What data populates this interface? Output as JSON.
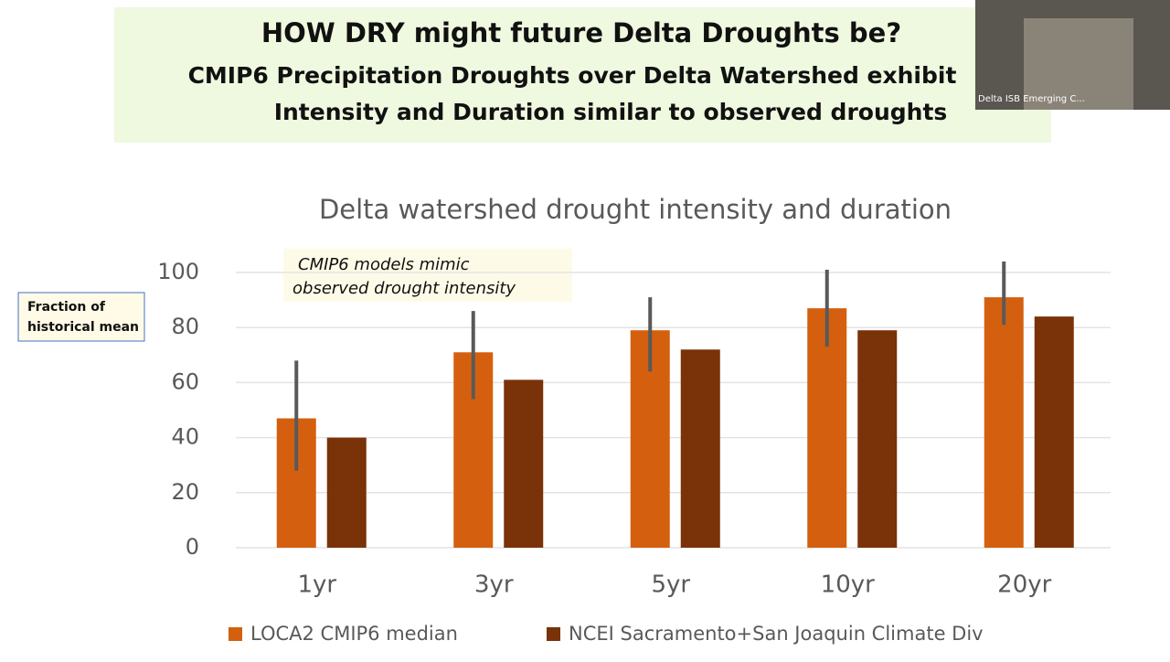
{
  "header": {
    "title": "HOW DRY might future Delta Droughts  be?",
    "subtitle_lines": [
      "CMIP6 Precipitation Droughts over Delta Watershed  exhibit",
      "Intensity and Duration similar to observed droughts"
    ]
  },
  "video": {
    "label": "Delta ISB Emerging C..."
  },
  "chart_data": {
    "type": "bar",
    "title": "Delta watershed drought intensity and duration",
    "y_label_lines": [
      "Fraction of",
      "historical mean"
    ],
    "annotation_lines": [
      "CMIP6 models mimic",
      "observed drought intensity"
    ],
    "categories": [
      "1yr",
      "3yr",
      "5yr",
      "10yr",
      "20yr"
    ],
    "series": [
      {
        "name": "LOCA2 CMIP6 median",
        "color": "#d4600f",
        "values": [
          47,
          71,
          79,
          87,
          91
        ],
        "error_range": [
          [
            28,
            68
          ],
          [
            54,
            86
          ],
          [
            64,
            91
          ],
          [
            73,
            101
          ],
          [
            81,
            104
          ]
        ]
      },
      {
        "name": "NCEI Sacramento+San Joaquin Climate Div",
        "color": "#7a3208",
        "values": [
          40,
          61,
          72,
          79,
          84
        ]
      }
    ],
    "ylim": [
      0,
      100
    ],
    "yticks": [
      0,
      20,
      40,
      60,
      80,
      100
    ],
    "grid": true,
    "legend": "bottom"
  }
}
